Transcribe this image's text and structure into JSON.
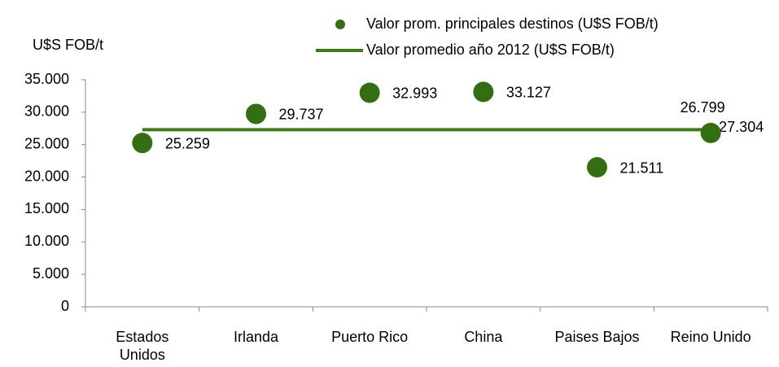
{
  "chart_data": {
    "type": "scatter",
    "ylabel": "U$S FOB/t",
    "categories": [
      "Estados Unidos",
      "Irlanda",
      "Puerto Rico",
      "China",
      "Paises Bajos",
      "Reino Unido"
    ],
    "series": [
      {
        "name": "Valor prom. principales destinos (U$S FOB/t)",
        "type": "scatter",
        "color": "#336e12",
        "values": [
          25259,
          29737,
          32993,
          33127,
          21511,
          26799
        ],
        "value_labels": [
          "25.259",
          "29.737",
          "32.993",
          "33.127",
          "21.511",
          "26.799"
        ]
      },
      {
        "name": "Valor promedio año 2012 (U$S FOB/t)",
        "type": "line",
        "color": "#3d7a1a",
        "values": [
          27304,
          27304,
          27304,
          27304,
          27304,
          27304
        ],
        "value_labels": [
          null,
          null,
          null,
          null,
          null,
          "27.304"
        ]
      }
    ],
    "ylim": [
      0,
      35000
    ],
    "yticks": [
      0,
      {
        "value": 5000,
        "label": "5.000"
      },
      {
        "value": 10000,
        "label": "10.000"
      },
      {
        "value": 15000,
        "label": "15.000"
      },
      {
        "value": 20000,
        "label": "20.000"
      },
      {
        "value": 25000,
        "label": "25.000"
      },
      {
        "value": 30000,
        "label": "30.000"
      },
      {
        "value": 35000,
        "label": "35.000"
      }
    ],
    "grid": false
  }
}
